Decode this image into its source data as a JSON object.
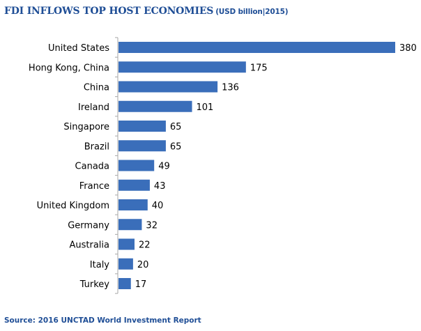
{
  "title": "FDI INFLOWS TOP HOST ECONOMIES",
  "subtitle": "(USD billion|2015)",
  "source": "Source: 2016 UNCTAD World Investment Report",
  "colors": {
    "bar": "#3A6EBA",
    "axis": "#A6A6A6",
    "text": "#000000",
    "title": "#1F4E96"
  },
  "chart_data": {
    "type": "bar",
    "orientation": "horizontal",
    "categories": [
      "United States",
      "Hong Kong, China",
      "China",
      "Ireland",
      "Singapore",
      "Brazil",
      "Canada",
      "France",
      "United Kingdom",
      "Germany",
      "Australia",
      "Italy",
      "Turkey"
    ],
    "values": [
      380,
      175,
      136,
      101,
      65,
      65,
      49,
      43,
      40,
      32,
      22,
      20,
      17
    ],
    "value_labels": [
      "380",
      "175",
      "136",
      "101",
      "65",
      "65",
      "49",
      "43",
      "40",
      "32",
      "22",
      "20",
      "17"
    ],
    "xlim": [
      0,
      380
    ],
    "grid": false,
    "legend": false
  }
}
